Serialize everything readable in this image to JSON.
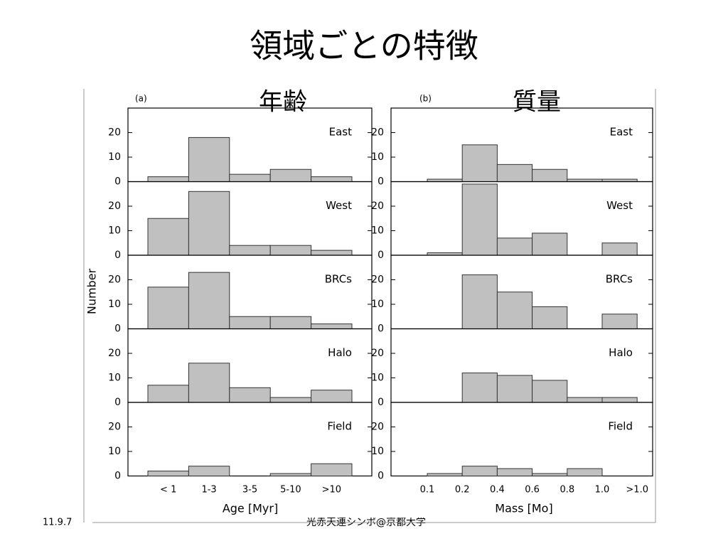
{
  "title": "領域ごとの特徴",
  "footer": {
    "date": "11.9.7",
    "venue": "光赤天連シンポ@京都大学"
  },
  "chart_data": [
    {
      "type": "histogram",
      "panel_label": "(a)",
      "title": "年齢",
      "xlabel": "Age [Myr]",
      "ylabel": "Number",
      "categories": [
        "< 1",
        "1-3",
        "3-5",
        "5-10",
        ">10"
      ],
      "ylim": [
        0,
        30
      ],
      "yticks": [
        0,
        10,
        20
      ],
      "color": "#c0c0c0",
      "series": [
        {
          "name": "East",
          "values": [
            2,
            18,
            3,
            5,
            2
          ]
        },
        {
          "name": "West",
          "values": [
            15,
            26,
            4,
            4,
            2
          ]
        },
        {
          "name": "BRCs",
          "values": [
            17,
            23,
            5,
            5,
            2
          ]
        },
        {
          "name": "Halo",
          "values": [
            7,
            16,
            6,
            2,
            5
          ]
        },
        {
          "name": "Field",
          "values": [
            2,
            4,
            0,
            1,
            5
          ]
        }
      ]
    },
    {
      "type": "histogram",
      "panel_label": "(b)",
      "title": "質量",
      "xlabel": "Mass [Mo]",
      "edges": [
        "0.1",
        "0.2",
        "0.4",
        "0.6",
        "0.8",
        "1.0",
        ">1.0"
      ],
      "ylim": [
        0,
        30
      ],
      "yticks": [
        0,
        10,
        20
      ],
      "color": "#c0c0c0",
      "series": [
        {
          "name": "East",
          "values": [
            1,
            15,
            7,
            5,
            1,
            1
          ]
        },
        {
          "name": "West",
          "values": [
            1,
            29,
            7,
            9,
            0,
            5
          ]
        },
        {
          "name": "BRCs",
          "values": [
            0,
            22,
            15,
            9,
            0,
            6
          ]
        },
        {
          "name": "Halo",
          "values": [
            0,
            12,
            11,
            9,
            2,
            2
          ]
        },
        {
          "name": "Field",
          "values": [
            1,
            4,
            3,
            1,
            3,
            0
          ]
        }
      ]
    }
  ]
}
